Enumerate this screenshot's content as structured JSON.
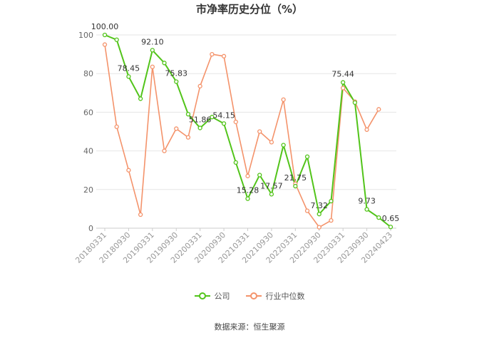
{
  "chart_data": {
    "type": "line",
    "title": "市净率历史分位（%）",
    "ylim": [
      0,
      100
    ],
    "yticks": [
      0,
      20,
      40,
      60,
      80,
      100
    ],
    "grid": true,
    "legend_position": "bottom-center",
    "x_tick_labels": [
      "20180331",
      "20180930",
      "20190331",
      "20190930",
      "20200331",
      "20200930",
      "20210331",
      "20210930",
      "20220331",
      "20220930",
      "20230331",
      "20230930",
      "20240423"
    ],
    "series": [
      {
        "name": "公司",
        "color": "#52c41a",
        "values": [
          100.0,
          97.5,
          78.45,
          67.0,
          92.1,
          85.5,
          75.83,
          59.0,
          51.86,
          57.5,
          54.15,
          34.0,
          15.28,
          27.5,
          17.57,
          43.0,
          21.75,
          37.0,
          7.32,
          14.0,
          75.44,
          65.0,
          9.73,
          5.5,
          0.65
        ],
        "labels": {
          "0": "100.00",
          "2": "78.45",
          "4": "92.10",
          "6": "75.83",
          "8": "51.86",
          "10": "54.15",
          "12": "15.28",
          "14": "17.57",
          "16": "21.75",
          "18": "7.32",
          "20": "75.44",
          "22": "9.73",
          "24": "0.65"
        }
      },
      {
        "name": "行业中位数",
        "color": "#f4936b",
        "values": [
          95.0,
          52.5,
          30.0,
          7.0,
          83.5,
          40.0,
          51.5,
          47.0,
          73.5,
          90.0,
          89.0,
          55.0,
          27.0,
          50.0,
          44.5,
          66.5,
          23.0,
          9.0,
          0.5,
          4.0,
          72.5,
          65.5,
          51.0,
          61.5,
          null
        ]
      }
    ]
  },
  "footer": {
    "source": "数据来源：恒生聚源"
  }
}
